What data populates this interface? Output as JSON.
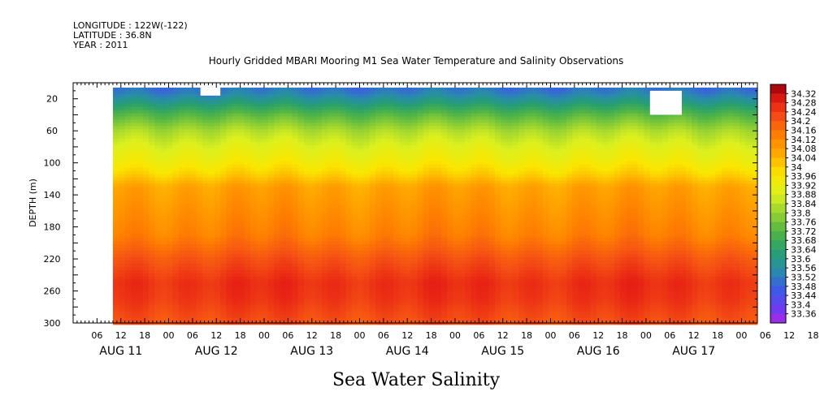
{
  "header": {
    "longitude": "LONGITUDE : 122W(-122)",
    "latitude": "LATITUDE : 36.8N",
    "year": "YEAR : 2011"
  },
  "chart_data": {
    "type": "heatmap",
    "title": "Hourly Gridded MBARI Mooring M1 Sea Water Temperature and Salinity Observations",
    "bottom_title": "Sea Water Salinity",
    "ylabel": "DEPTH (m)",
    "y_ticks": [
      "20",
      "60",
      "100",
      "140",
      "180",
      "220",
      "260",
      "300"
    ],
    "ylim": [
      0,
      300
    ],
    "y_reversed": true,
    "x_hour_ticks": [
      "06",
      "12",
      "18",
      "00",
      "06",
      "12",
      "18",
      "00",
      "06",
      "12",
      "18",
      "00",
      "06",
      "12",
      "18",
      "00",
      "06",
      "12",
      "18",
      "00",
      "06",
      "12",
      "18",
      "00",
      "06",
      "12",
      "18",
      "00",
      "06",
      "12",
      "18",
      "00"
    ],
    "x_day_labels": [
      "AUG 11",
      "AUG 12",
      "AUG 13",
      "AUG 14",
      "AUG 15",
      "AUG 16",
      "AUG 17"
    ],
    "x_start": "2011-08-11 00:00",
    "x_end": "2011-08-18 04:00",
    "data_start": "2011-08-11 10:00",
    "colorbar_labels": [
      "34.32",
      "34.28",
      "34.24",
      "34.2",
      "34.16",
      "34.12",
      "34.08",
      "34.04",
      "34",
      "33.96",
      "33.92",
      "33.88",
      "33.84",
      "33.8",
      "33.76",
      "33.72",
      "33.68",
      "33.64",
      "33.6",
      "33.56",
      "33.52",
      "33.48",
      "33.44",
      "33.4",
      "33.36"
    ],
    "color_range": [
      33.36,
      34.34
    ],
    "salinity_profile": [
      {
        "depth": 10,
        "value": 33.54
      },
      {
        "depth": 20,
        "value": 33.6
      },
      {
        "depth": 40,
        "value": 33.74
      },
      {
        "depth": 60,
        "value": 33.84
      },
      {
        "depth": 80,
        "value": 33.9
      },
      {
        "depth": 100,
        "value": 33.95
      },
      {
        "depth": 115,
        "value": 34.0
      },
      {
        "depth": 130,
        "value": 34.07
      },
      {
        "depth": 160,
        "value": 34.1
      },
      {
        "depth": 190,
        "value": 34.13
      },
      {
        "depth": 220,
        "value": 34.2
      },
      {
        "depth": 250,
        "value": 34.25
      },
      {
        "depth": 270,
        "value": 34.24
      },
      {
        "depth": 300,
        "value": 34.2
      }
    ],
    "missing_data": [
      {
        "start": "2011-08-12 08:00",
        "end": "2011-08-12 13:00",
        "depth_min": 6,
        "depth_max": 16
      },
      {
        "start": "2011-08-17 01:00",
        "end": "2011-08-17 09:00",
        "depth_min": 10,
        "depth_max": 40
      }
    ]
  }
}
